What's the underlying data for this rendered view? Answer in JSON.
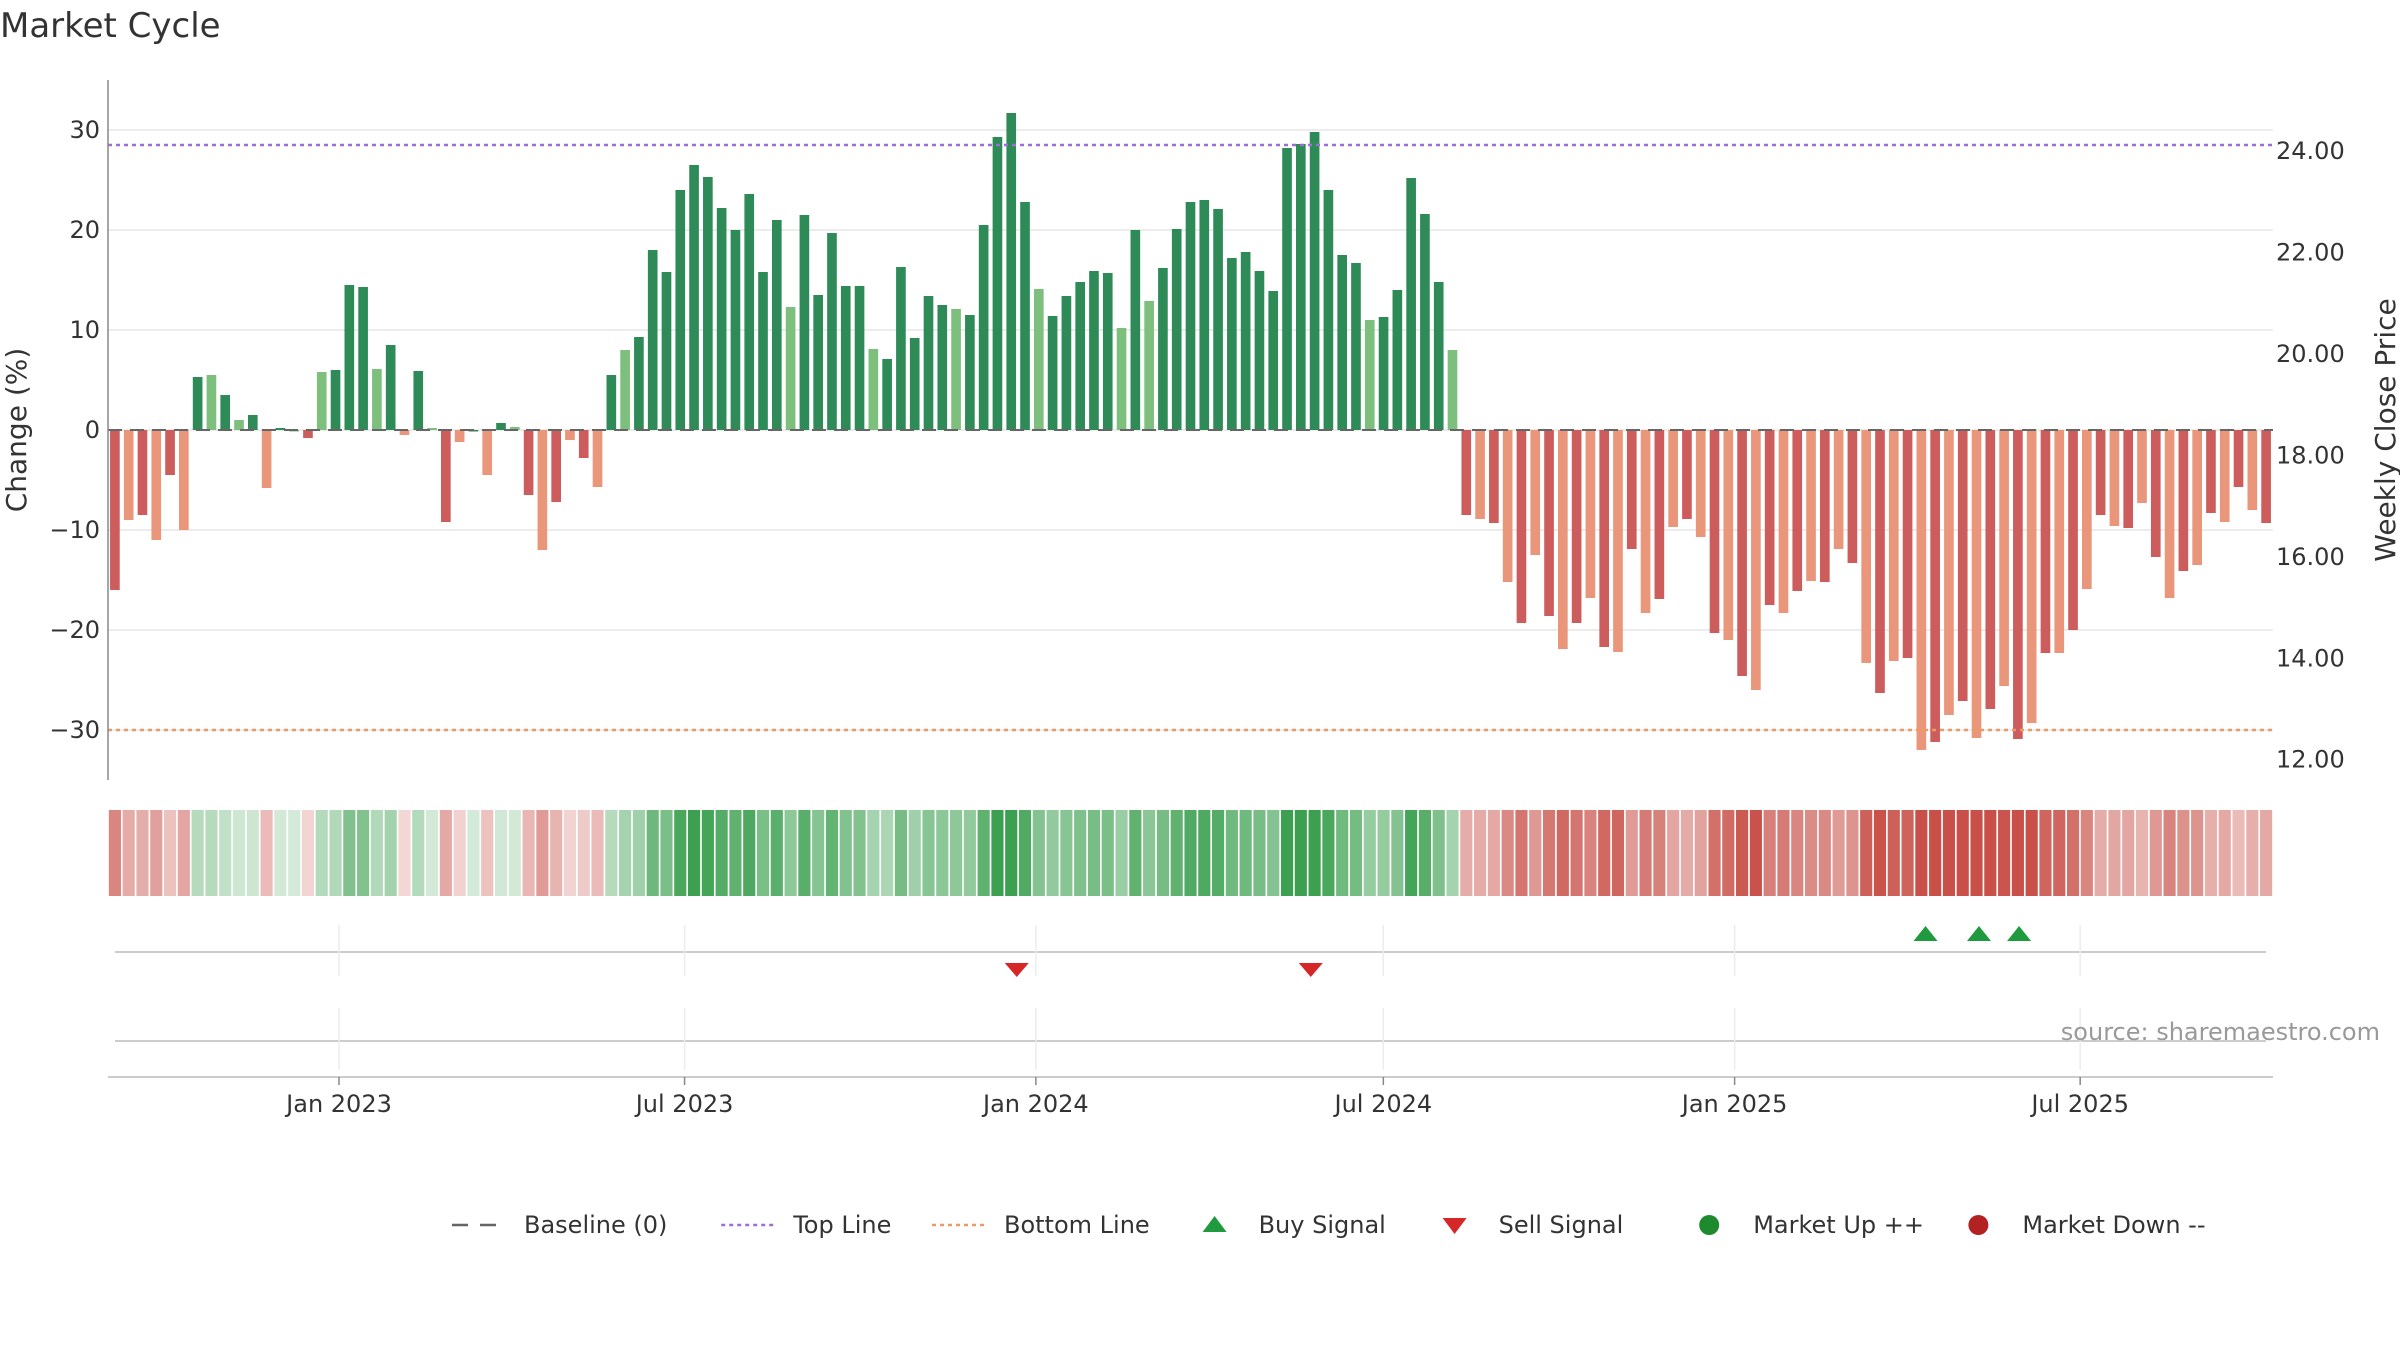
{
  "chart_data": {
    "type": "bar",
    "title": "Market Cycle",
    "ylabel_left": "Change (%)",
    "ylabel_right": "Weekly Close Price",
    "source": "source: sharemaestro.com",
    "left_axis": {
      "range": [
        -35,
        35
      ],
      "ticks": [
        30,
        20,
        10,
        0,
        -10,
        -20,
        -30
      ],
      "tick_labels": [
        "30",
        "20",
        "10",
        "0",
        "−10",
        "−20",
        "−30"
      ]
    },
    "right_axis": {
      "range": [
        11.6,
        25.4
      ],
      "ticks": [
        24,
        22,
        20,
        18,
        16,
        14,
        12
      ],
      "tick_labels": [
        "24.00",
        "22.00",
        "20.00",
        "18.00",
        "16.00",
        "14.00",
        "12.00"
      ]
    },
    "x_axis": {
      "start_date": "2022-09-02",
      "end_date": "2025-10-10",
      "ticks": [
        {
          "date": "2023-01-01",
          "label": "Jan 2023"
        },
        {
          "date": "2023-07-01",
          "label": "Jul 2023"
        },
        {
          "date": "2024-01-01",
          "label": "Jan 2024"
        },
        {
          "date": "2024-07-01",
          "label": "Jul 2024"
        },
        {
          "date": "2025-01-01",
          "label": "Jan 2025"
        },
        {
          "date": "2025-07-01",
          "label": "Jul 2025"
        }
      ]
    },
    "reference_lines": {
      "baseline": 0,
      "top_line": 28.5,
      "bottom_line": -30
    },
    "weekly_change": [
      -16,
      -9,
      -8.5,
      -11,
      -4.5,
      -10,
      5.3,
      5.5,
      3.5,
      1,
      1.5,
      -5.8,
      0.2,
      0,
      -0.8,
      5.8,
      6,
      14.5,
      14.3,
      6.1,
      8.5,
      -0.5,
      5.9,
      0.2,
      -9.2,
      -1.2,
      0,
      -4.5,
      0.7,
      0.3,
      -6.5,
      -12,
      -7.2,
      -1,
      -2.8,
      -5.7,
      5.5,
      8,
      9.3,
      18,
      15.8,
      24,
      26.5,
      25.3,
      22.2,
      20,
      23.6,
      15.8,
      21,
      12.3,
      21.5,
      13.5,
      19.7,
      14.4,
      14.4,
      8.1,
      7.1,
      16.3,
      9.2,
      13.4,
      12.5,
      12.1,
      11.5,
      20.5,
      29.3,
      31.7,
      22.8,
      14.1,
      11.4,
      13.4,
      14.8,
      15.9,
      15.7,
      10.2,
      20,
      12.9,
      16.2,
      20.1,
      22.8,
      23,
      22.1,
      17.2,
      17.8,
      15.9,
      13.9,
      28.2,
      28.6,
      29.8,
      24,
      17.5,
      16.7,
      11,
      11.3,
      14,
      25.2,
      21.6,
      14.8,
      8,
      -8.5,
      -8.9,
      -9.3,
      -15.2,
      -19.3,
      -12.5,
      -18.6,
      -21.9,
      -19.3,
      -16.8,
      -21.7,
      -22.2,
      -11.9,
      -18.3,
      -16.9,
      -9.7,
      -8.9,
      -10.7,
      -20.3,
      -21,
      -24.6,
      -26,
      -17.5,
      -18.3,
      -16.1,
      -15.1,
      -15.2,
      -11.9,
      -13.3,
      -23.3,
      -26.3,
      -23.1,
      -22.8,
      -32,
      -31.2,
      -28.5,
      -27.1,
      -30.8,
      -27.9,
      -25.6,
      -30.9,
      -29.3,
      -22.3,
      -22.3,
      -20,
      -15.9,
      -8.5,
      -9.6,
      -9.8,
      -7.3,
      -12.7,
      -16.8,
      -14.1,
      -13.5,
      -8.3,
      -9.2,
      -5.7,
      -8,
      -9.3
    ],
    "buy_signals": [
      "2025-04-11",
      "2025-05-09",
      "2025-05-30"
    ],
    "sell_signals": [
      "2023-12-22",
      "2024-05-24"
    ],
    "legend": [
      {
        "label": "Baseline (0)",
        "marker": "dashed-line",
        "color": "#666666"
      },
      {
        "label": "Top Line",
        "marker": "dotted-line",
        "color": "#9a6fd6"
      },
      {
        "label": "Bottom Line",
        "marker": "dotted-line",
        "color": "#ec9a64"
      },
      {
        "label": "Buy Signal",
        "marker": "triangle-up",
        "color": "#1f9a3f"
      },
      {
        "label": "Sell Signal",
        "marker": "triangle-down",
        "color": "#d62728"
      },
      {
        "label": "Market Up ++",
        "marker": "circle",
        "color": "#1e8a2e"
      },
      {
        "label": "Market Down --",
        "marker": "circle",
        "color": "#b22222"
      }
    ],
    "colors": {
      "up_dark": "#2e8b57",
      "up_light": "#7dbf7d",
      "down_dark": "#cd5c5c",
      "down_light": "#e9967a",
      "top_line": "#9a6fd6",
      "bottom_line": "#ec9a64",
      "baseline": "#666666",
      "grid": "#e6e6e6"
    },
    "grid": true,
    "legend_position": "bottom"
  }
}
